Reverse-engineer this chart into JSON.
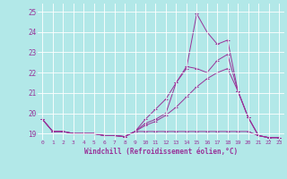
{
  "background_color": "#b2e8e8",
  "grid_color": "#ffffff",
  "line_color": "#993399",
  "xlabel": "Windchill (Refroidissement éolien,°C)",
  "xlim": [
    -0.5,
    23.5
  ],
  "ylim": [
    18.7,
    25.4
  ],
  "yticks": [
    19,
    20,
    21,
    22,
    23,
    24,
    25
  ],
  "xticks": [
    0,
    1,
    2,
    3,
    4,
    5,
    6,
    7,
    8,
    9,
    10,
    11,
    12,
    13,
    14,
    15,
    16,
    17,
    18,
    19,
    20,
    21,
    22,
    23
  ],
  "series": [
    [
      19.7,
      19.1,
      19.1,
      19.0,
      19.0,
      19.0,
      18.9,
      18.9,
      18.85,
      19.1,
      19.5,
      19.7,
      20.0,
      21.5,
      22.2,
      24.9,
      24.0,
      23.4,
      23.6,
      21.1,
      19.8,
      18.9,
      18.8,
      18.8
    ],
    [
      19.7,
      19.1,
      19.1,
      19.0,
      19.0,
      19.0,
      18.9,
      18.9,
      18.85,
      19.1,
      19.7,
      20.2,
      20.7,
      21.5,
      22.3,
      22.2,
      22.0,
      22.6,
      22.9,
      21.1,
      19.8,
      18.9,
      18.8,
      18.8
    ],
    [
      19.7,
      19.1,
      19.1,
      19.0,
      19.0,
      19.0,
      18.9,
      18.9,
      18.85,
      19.1,
      19.4,
      19.6,
      19.9,
      20.3,
      20.8,
      21.3,
      21.7,
      22.0,
      22.2,
      21.1,
      19.8,
      18.9,
      18.8,
      18.8
    ],
    [
      19.7,
      19.1,
      19.1,
      19.0,
      19.0,
      19.0,
      18.9,
      18.9,
      18.85,
      19.1,
      19.1,
      19.1,
      19.1,
      19.1,
      19.1,
      19.1,
      19.1,
      19.1,
      19.1,
      19.1,
      19.1,
      18.9,
      18.8,
      18.8
    ]
  ]
}
